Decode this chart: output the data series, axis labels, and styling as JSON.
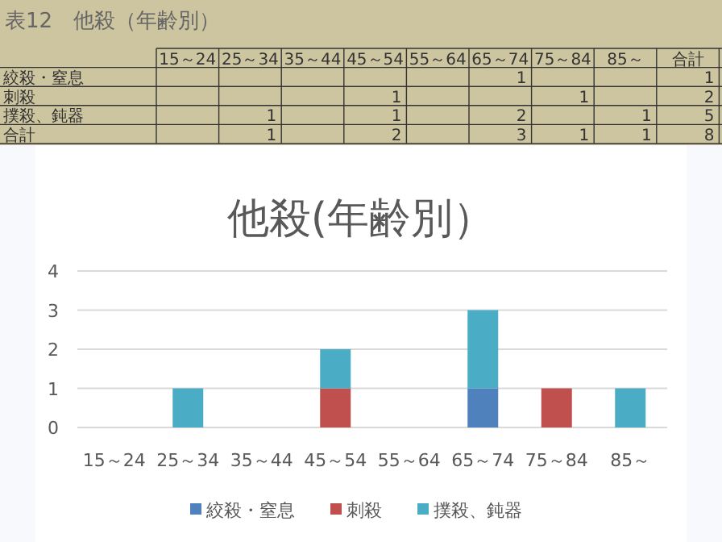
{
  "chart_data": [
    {
      "type": "other",
      "title": "表12　他殺（年齢別）",
      "categories": [
        "15～24",
        "25～34",
        "35～44",
        "45～54",
        "55～64",
        "65～74",
        "75～84",
        "85～",
        "合計"
      ],
      "y_categories": [
        "絞殺・窒息",
        "刺殺",
        "撲殺、鈍器",
        "合計"
      ],
      "cell_labels": [
        [
          null,
          null,
          null,
          null,
          null,
          "1",
          null,
          null,
          "1"
        ],
        [
          null,
          null,
          null,
          "1",
          null,
          null,
          "1",
          null,
          "2"
        ],
        [
          null,
          "1",
          null,
          "1",
          null,
          "2",
          null,
          "1",
          "5"
        ],
        [
          null,
          "1",
          null,
          "2",
          null,
          "3",
          "1",
          "1",
          "8"
        ]
      ]
    },
    {
      "type": "bar",
      "stacked": true,
      "title": "他殺(年齢別）",
      "categories": [
        "15～24",
        "25～34",
        "35～44",
        "45～54",
        "55～64",
        "65～74",
        "75～84",
        "85～"
      ],
      "series": [
        {
          "name": "絞殺・窒息",
          "color": "#4f81bd",
          "values": [
            null,
            null,
            null,
            null,
            null,
            1,
            null,
            null
          ]
        },
        {
          "name": "刺殺",
          "color": "#c0504d",
          "values": [
            null,
            null,
            null,
            1,
            null,
            null,
            1,
            null
          ]
        },
        {
          "name": "撲殺、鈍器",
          "color": "#4bacc6",
          "values": [
            null,
            1,
            null,
            1,
            null,
            2,
            null,
            1
          ]
        }
      ],
      "ylim": [
        0,
        4
      ],
      "yticks": [
        0,
        1,
        2,
        3,
        4
      ],
      "grid": "y",
      "legend": "bottom"
    }
  ]
}
